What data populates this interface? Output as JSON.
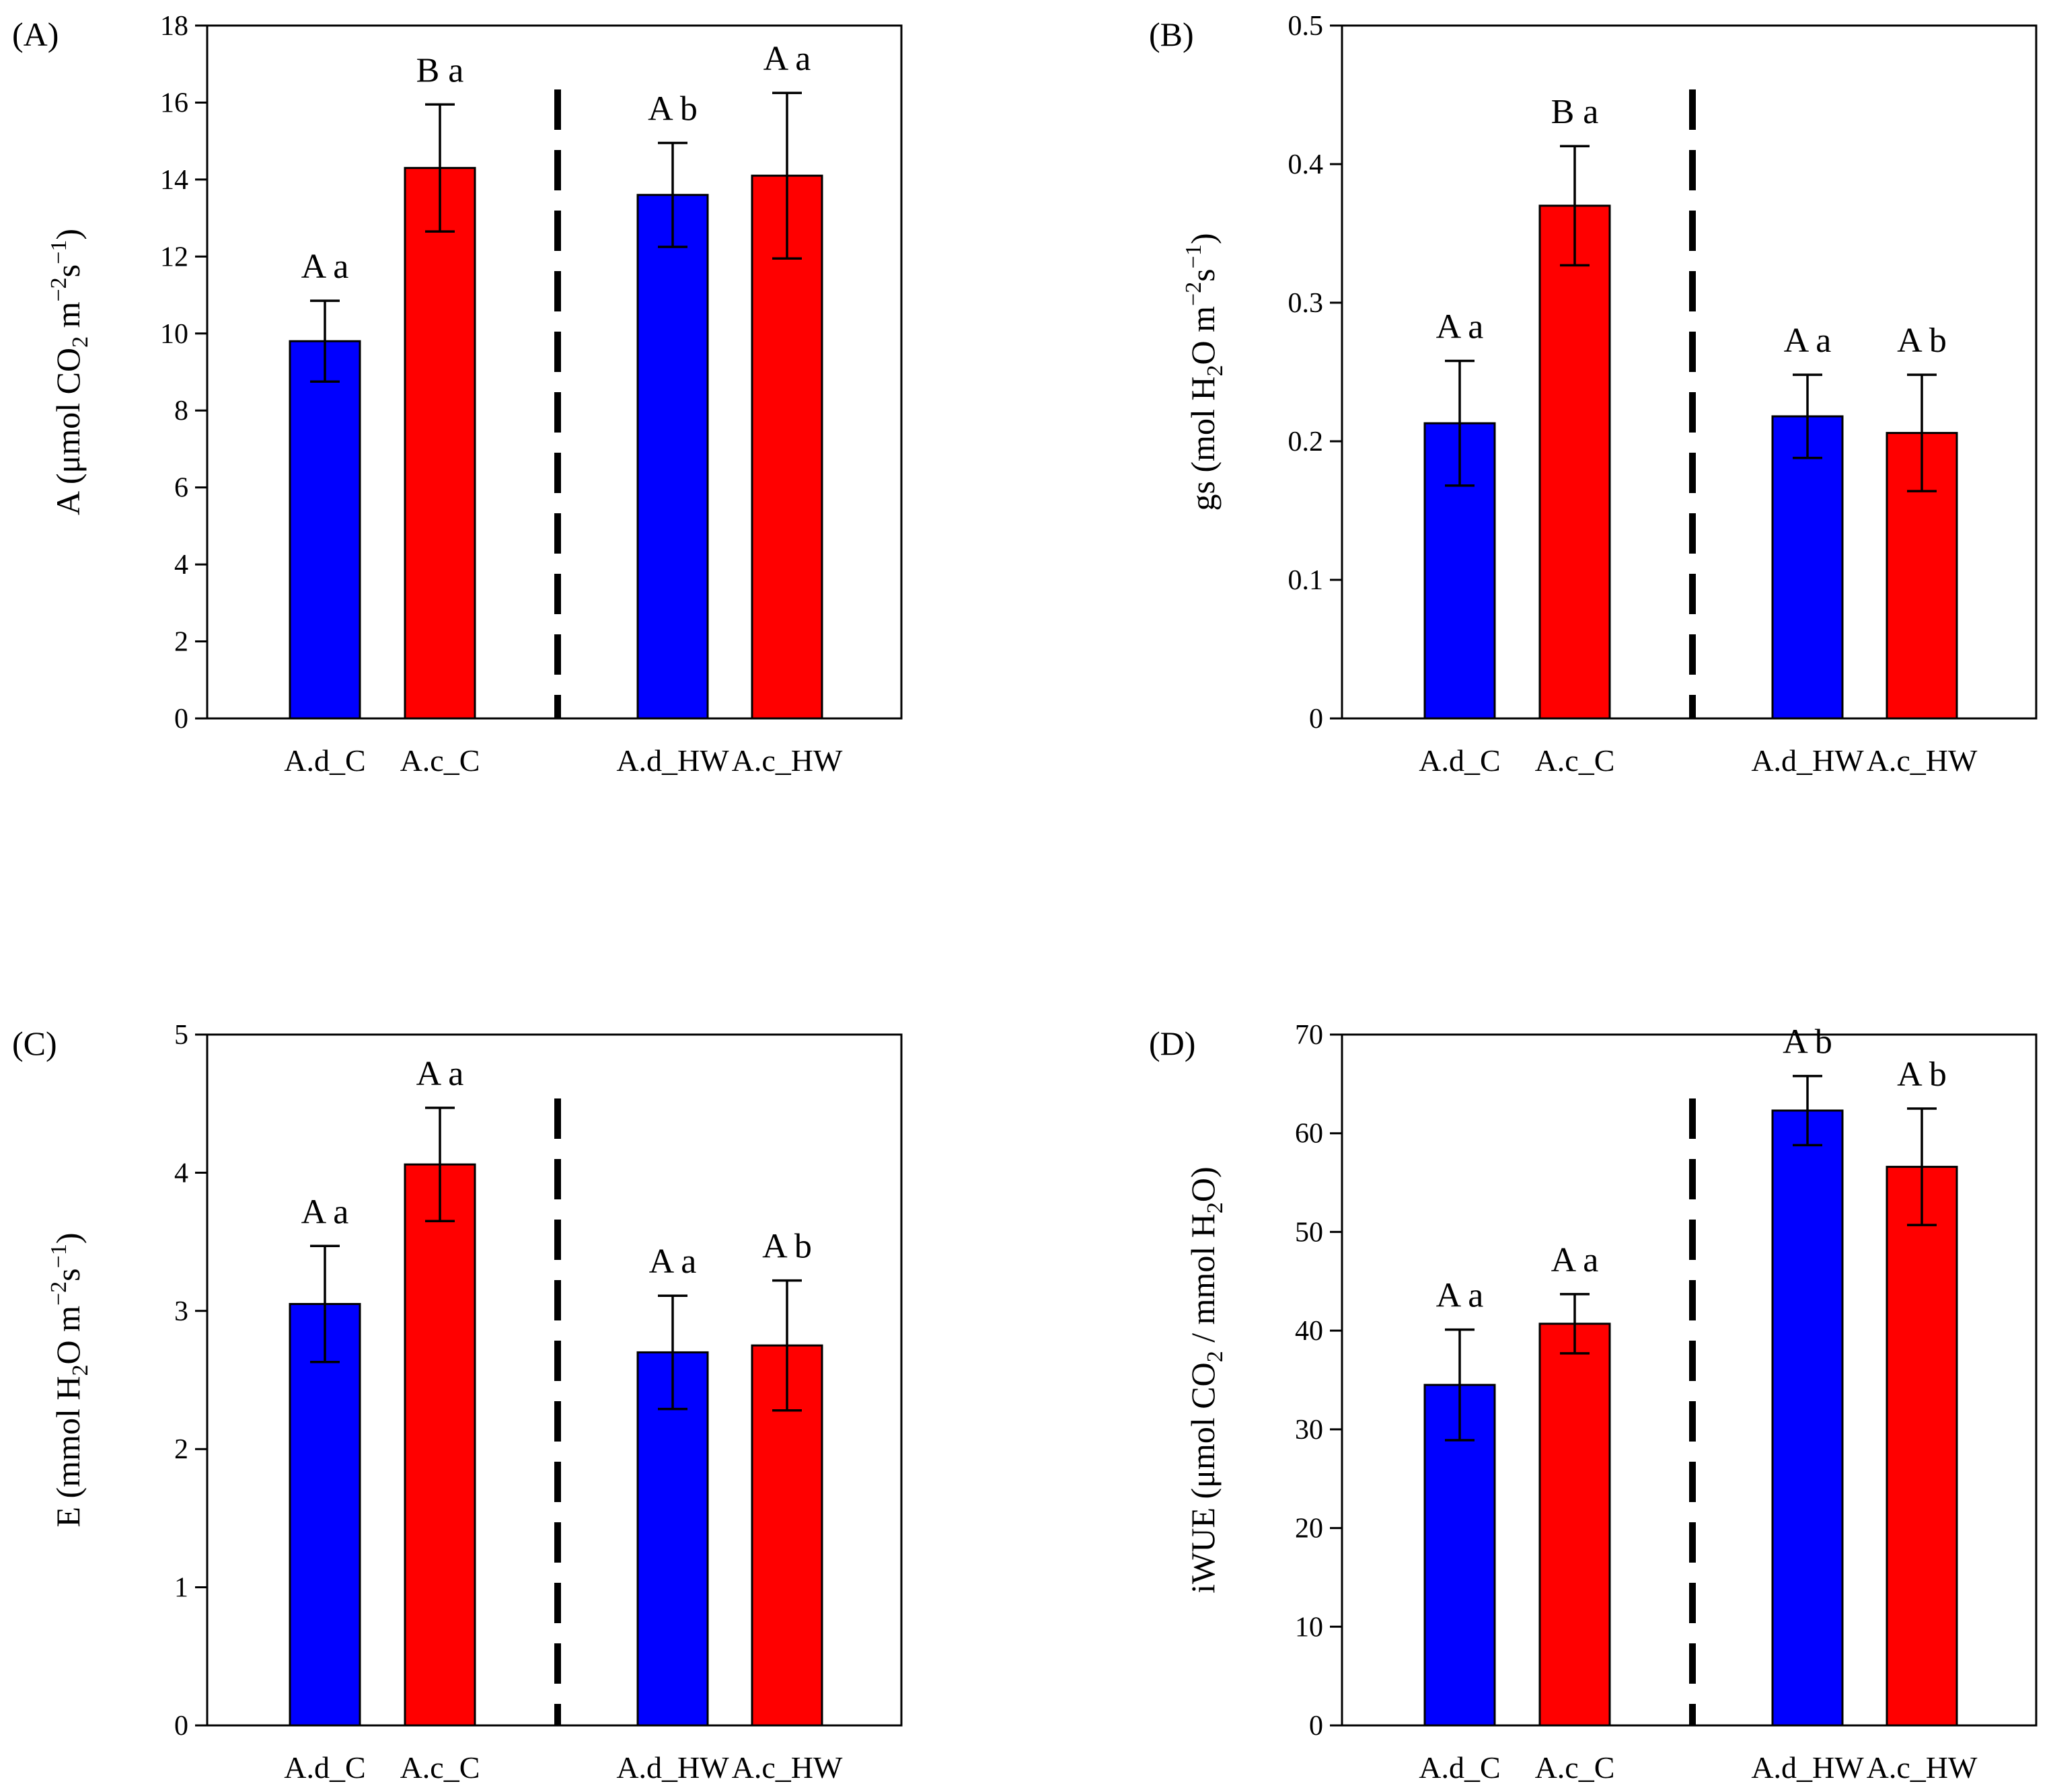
{
  "figure": {
    "colors": {
      "Ad": "#0000ff",
      "Ac": "#ff0000"
    }
  },
  "chart_data": [
    {
      "panel": "(A)",
      "type": "bar",
      "categories": [
        "A.d_C",
        "A.c_C",
        "A.d_HW",
        "A.c_HW"
      ],
      "values": [
        9.8,
        14.3,
        13.6,
        14.1
      ],
      "errors": [
        1.05,
        1.65,
        1.35,
        2.15
      ],
      "sig_labels": [
        "A a",
        "B a",
        "A b",
        "A a"
      ],
      "ylabel": {
        "pre": "A (μmol CO",
        "sub": "2",
        "mid": " m",
        "sup": "−2",
        "mid2": "s",
        "sup2": "−1",
        "post": ")"
      },
      "ylim": [
        0,
        18
      ],
      "yticks": [
        "0",
        "2",
        "4",
        "6",
        "8",
        "10",
        "12",
        "14",
        "16",
        "18"
      ]
    },
    {
      "panel": "(B)",
      "type": "bar",
      "categories": [
        "A.d_C",
        "A.c_C",
        "A.d_HW",
        "A.c_HW"
      ],
      "values": [
        0.213,
        0.37,
        0.218,
        0.206
      ],
      "errors": [
        0.045,
        0.043,
        0.03,
        0.042
      ],
      "sig_labels": [
        "A a",
        "B a",
        "A a",
        "A b"
      ],
      "ylabel": {
        "pre": "gs (mol H",
        "sub": "2",
        "mid": "O m",
        "sup": "−2",
        "mid2": "s",
        "sup2": "−1",
        "post": ")"
      },
      "ylim": [
        0,
        0.5
      ],
      "yticks": [
        "0",
        "0.1",
        "0.2",
        "0.3",
        "0.4",
        "0.5"
      ]
    },
    {
      "panel": "(C)",
      "type": "bar",
      "categories": [
        "A.d_C",
        "A.c_C",
        "A.d_HW",
        "A.c_HW"
      ],
      "values": [
        3.05,
        4.06,
        2.7,
        2.75
      ],
      "errors": [
        0.42,
        0.41,
        0.41,
        0.47
      ],
      "sig_labels": [
        "A a",
        "A a",
        "A a",
        "A b"
      ],
      "ylabel": {
        "pre": "E (mmol H",
        "sub": "2",
        "mid": "O m",
        "sup": "−2",
        "mid2": "s",
        "sup2": "−1",
        "post": ")"
      },
      "ylim": [
        0,
        5
      ],
      "yticks": [
        "0",
        "1",
        "2",
        "3",
        "4",
        "5"
      ]
    },
    {
      "panel": "(D)",
      "type": "bar",
      "categories": [
        "A.d_C",
        "A.c_C",
        "A.d_HW",
        "A.c_HW"
      ],
      "values": [
        34.5,
        40.7,
        62.3,
        56.6
      ],
      "errors": [
        5.6,
        3.0,
        3.5,
        5.9
      ],
      "sig_labels": [
        "A a",
        "A a",
        "A b",
        "A b"
      ],
      "ylabel": {
        "pre": "iWUE (μmol CO",
        "sub": "2",
        "mid": " / mmol H",
        "sup": "",
        "mid2": "",
        "sup2": "",
        "post": "O)",
        "sub2": "2"
      },
      "ylim": [
        0,
        70
      ],
      "yticks": [
        "0",
        "10",
        "20",
        "30",
        "40",
        "50",
        "60",
        "70"
      ]
    }
  ]
}
